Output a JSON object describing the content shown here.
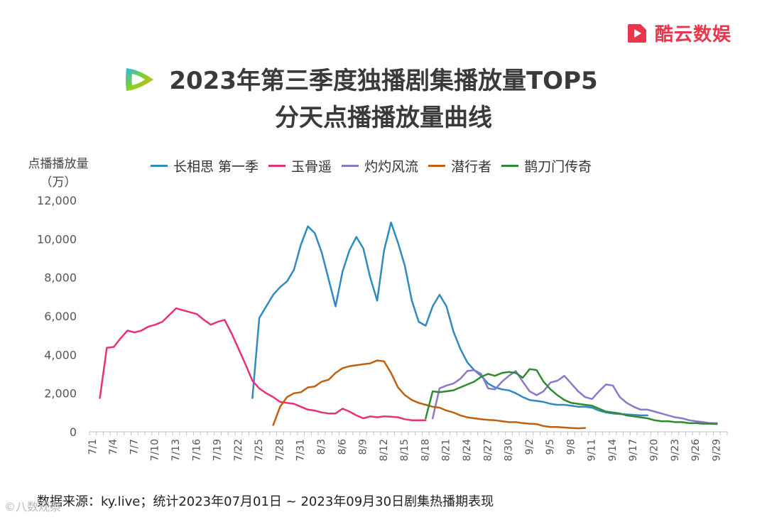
{
  "brand": {
    "name": "酷云数娱",
    "accent": "#e8374d"
  },
  "title": {
    "line1": "2023年第三季度独播剧集播放量TOP5",
    "line2": "分天点播播放量曲线"
  },
  "app_icon": "tencent-video-icon",
  "footer": {
    "source": "数据来源：ky.live；统计2023年07月01日 ~ 2023年09月30日剧集热播期表现"
  },
  "watermark": {
    "text": "©八数观察"
  },
  "chart_data": {
    "type": "line",
    "ylabel": "点播播放量（万）",
    "ylabel_line1": "点播播放量",
    "ylabel_line2": "（万）",
    "ylim": [
      0,
      12000
    ],
    "yticks": [
      0,
      2000,
      4000,
      6000,
      8000,
      10000,
      12000
    ],
    "ytick_labels": [
      "0",
      "2,000",
      "4,000",
      "6,000",
      "8,000",
      "10,000",
      "12,000"
    ],
    "x_start": "7/1",
    "x_count": 92,
    "xtick_labels": [
      "7/1",
      "7/4",
      "7/7",
      "7/10",
      "7/13",
      "7/16",
      "7/19",
      "7/22",
      "7/25",
      "7/28",
      "7/31",
      "8/3",
      "8/6",
      "8/9",
      "8/12",
      "8/15",
      "8/18",
      "8/21",
      "8/24",
      "8/27",
      "8/30",
      "9/2",
      "9/5",
      "9/8",
      "9/11",
      "9/14",
      "9/17",
      "9/20",
      "9/23",
      "9/26",
      "9/29"
    ],
    "xtick_index": [
      0,
      3,
      6,
      9,
      12,
      15,
      18,
      21,
      24,
      27,
      30,
      33,
      36,
      39,
      42,
      45,
      48,
      51,
      54,
      57,
      60,
      63,
      66,
      69,
      72,
      75,
      78,
      81,
      84,
      87,
      90
    ],
    "series": [
      {
        "name": "长相思 第一季",
        "color": "#2e8bc0",
        "start_index": 23,
        "values": [
          1750,
          5900,
          6500,
          7100,
          7500,
          7800,
          8400,
          9700,
          10650,
          10300,
          9300,
          7900,
          6500,
          8300,
          9400,
          10100,
          9500,
          8000,
          6800,
          9400,
          10850,
          9800,
          8600,
          6800,
          5700,
          5500,
          6500,
          7100,
          6500,
          5200,
          4300,
          3600,
          3200,
          2900,
          2500,
          2300,
          2200,
          2150,
          2000,
          1800,
          1650,
          1600,
          1550,
          1450,
          1400,
          1400,
          1350,
          1300,
          1300,
          1250,
          1100,
          1000,
          950,
          920,
          900,
          880,
          850,
          850
        ]
      },
      {
        "name": "玉骨遥",
        "color": "#e8307a",
        "start_index": 1,
        "values": [
          1750,
          4350,
          4400,
          4850,
          5250,
          5150,
          5250,
          5450,
          5550,
          5700,
          6050,
          6400,
          6300,
          6200,
          6100,
          5800,
          5550,
          5700,
          5800,
          5100,
          4300,
          3500,
          2650,
          2250,
          2000,
          1800,
          1550,
          1500,
          1450,
          1300,
          1150,
          1100,
          1000,
          950,
          950,
          1200,
          1050,
          850,
          700,
          800,
          750,
          800,
          780,
          750,
          650,
          600,
          600,
          600
        ]
      },
      {
        "name": "灼灼风流",
        "color": "#8c78c8",
        "start_index": 49,
        "values": [
          700,
          2250,
          2400,
          2500,
          2750,
          3150,
          3200,
          3000,
          2250,
          2200,
          2600,
          2900,
          3150,
          2600,
          2100,
          1900,
          2100,
          2550,
          2650,
          2900,
          2500,
          2100,
          1800,
          1700,
          2100,
          2450,
          2400,
          1800,
          1500,
          1300,
          1150,
          1150,
          1050,
          950,
          850,
          750,
          700,
          600,
          550,
          500,
          450,
          450
        ]
      },
      {
        "name": "潜行者",
        "color": "#c0600d",
        "start_index": 26,
        "values": [
          350,
          1300,
          1800,
          2000,
          2050,
          2300,
          2350,
          2600,
          2700,
          3050,
          3300,
          3400,
          3450,
          3500,
          3550,
          3700,
          3650,
          3050,
          2300,
          1900,
          1650,
          1500,
          1400,
          1300,
          1250,
          1100,
          1000,
          850,
          750,
          700,
          650,
          620,
          600,
          550,
          500,
          500,
          450,
          420,
          400,
          300,
          250,
          250,
          220,
          200,
          180,
          200
        ]
      },
      {
        "name": "鹊刀门传奇",
        "color": "#2e8a2e",
        "start_index": 48,
        "values": [
          700,
          2100,
          2050,
          2100,
          2150,
          2300,
          2450,
          2600,
          2850,
          3000,
          2900,
          3050,
          3100,
          3050,
          2800,
          3250,
          3200,
          2600,
          2200,
          1900,
          1650,
          1500,
          1450,
          1400,
          1350,
          1200,
          1050,
          1000,
          950,
          850,
          800,
          750,
          700,
          600,
          550,
          550,
          500,
          500,
          450,
          450,
          420,
          420,
          400
        ]
      }
    ]
  }
}
